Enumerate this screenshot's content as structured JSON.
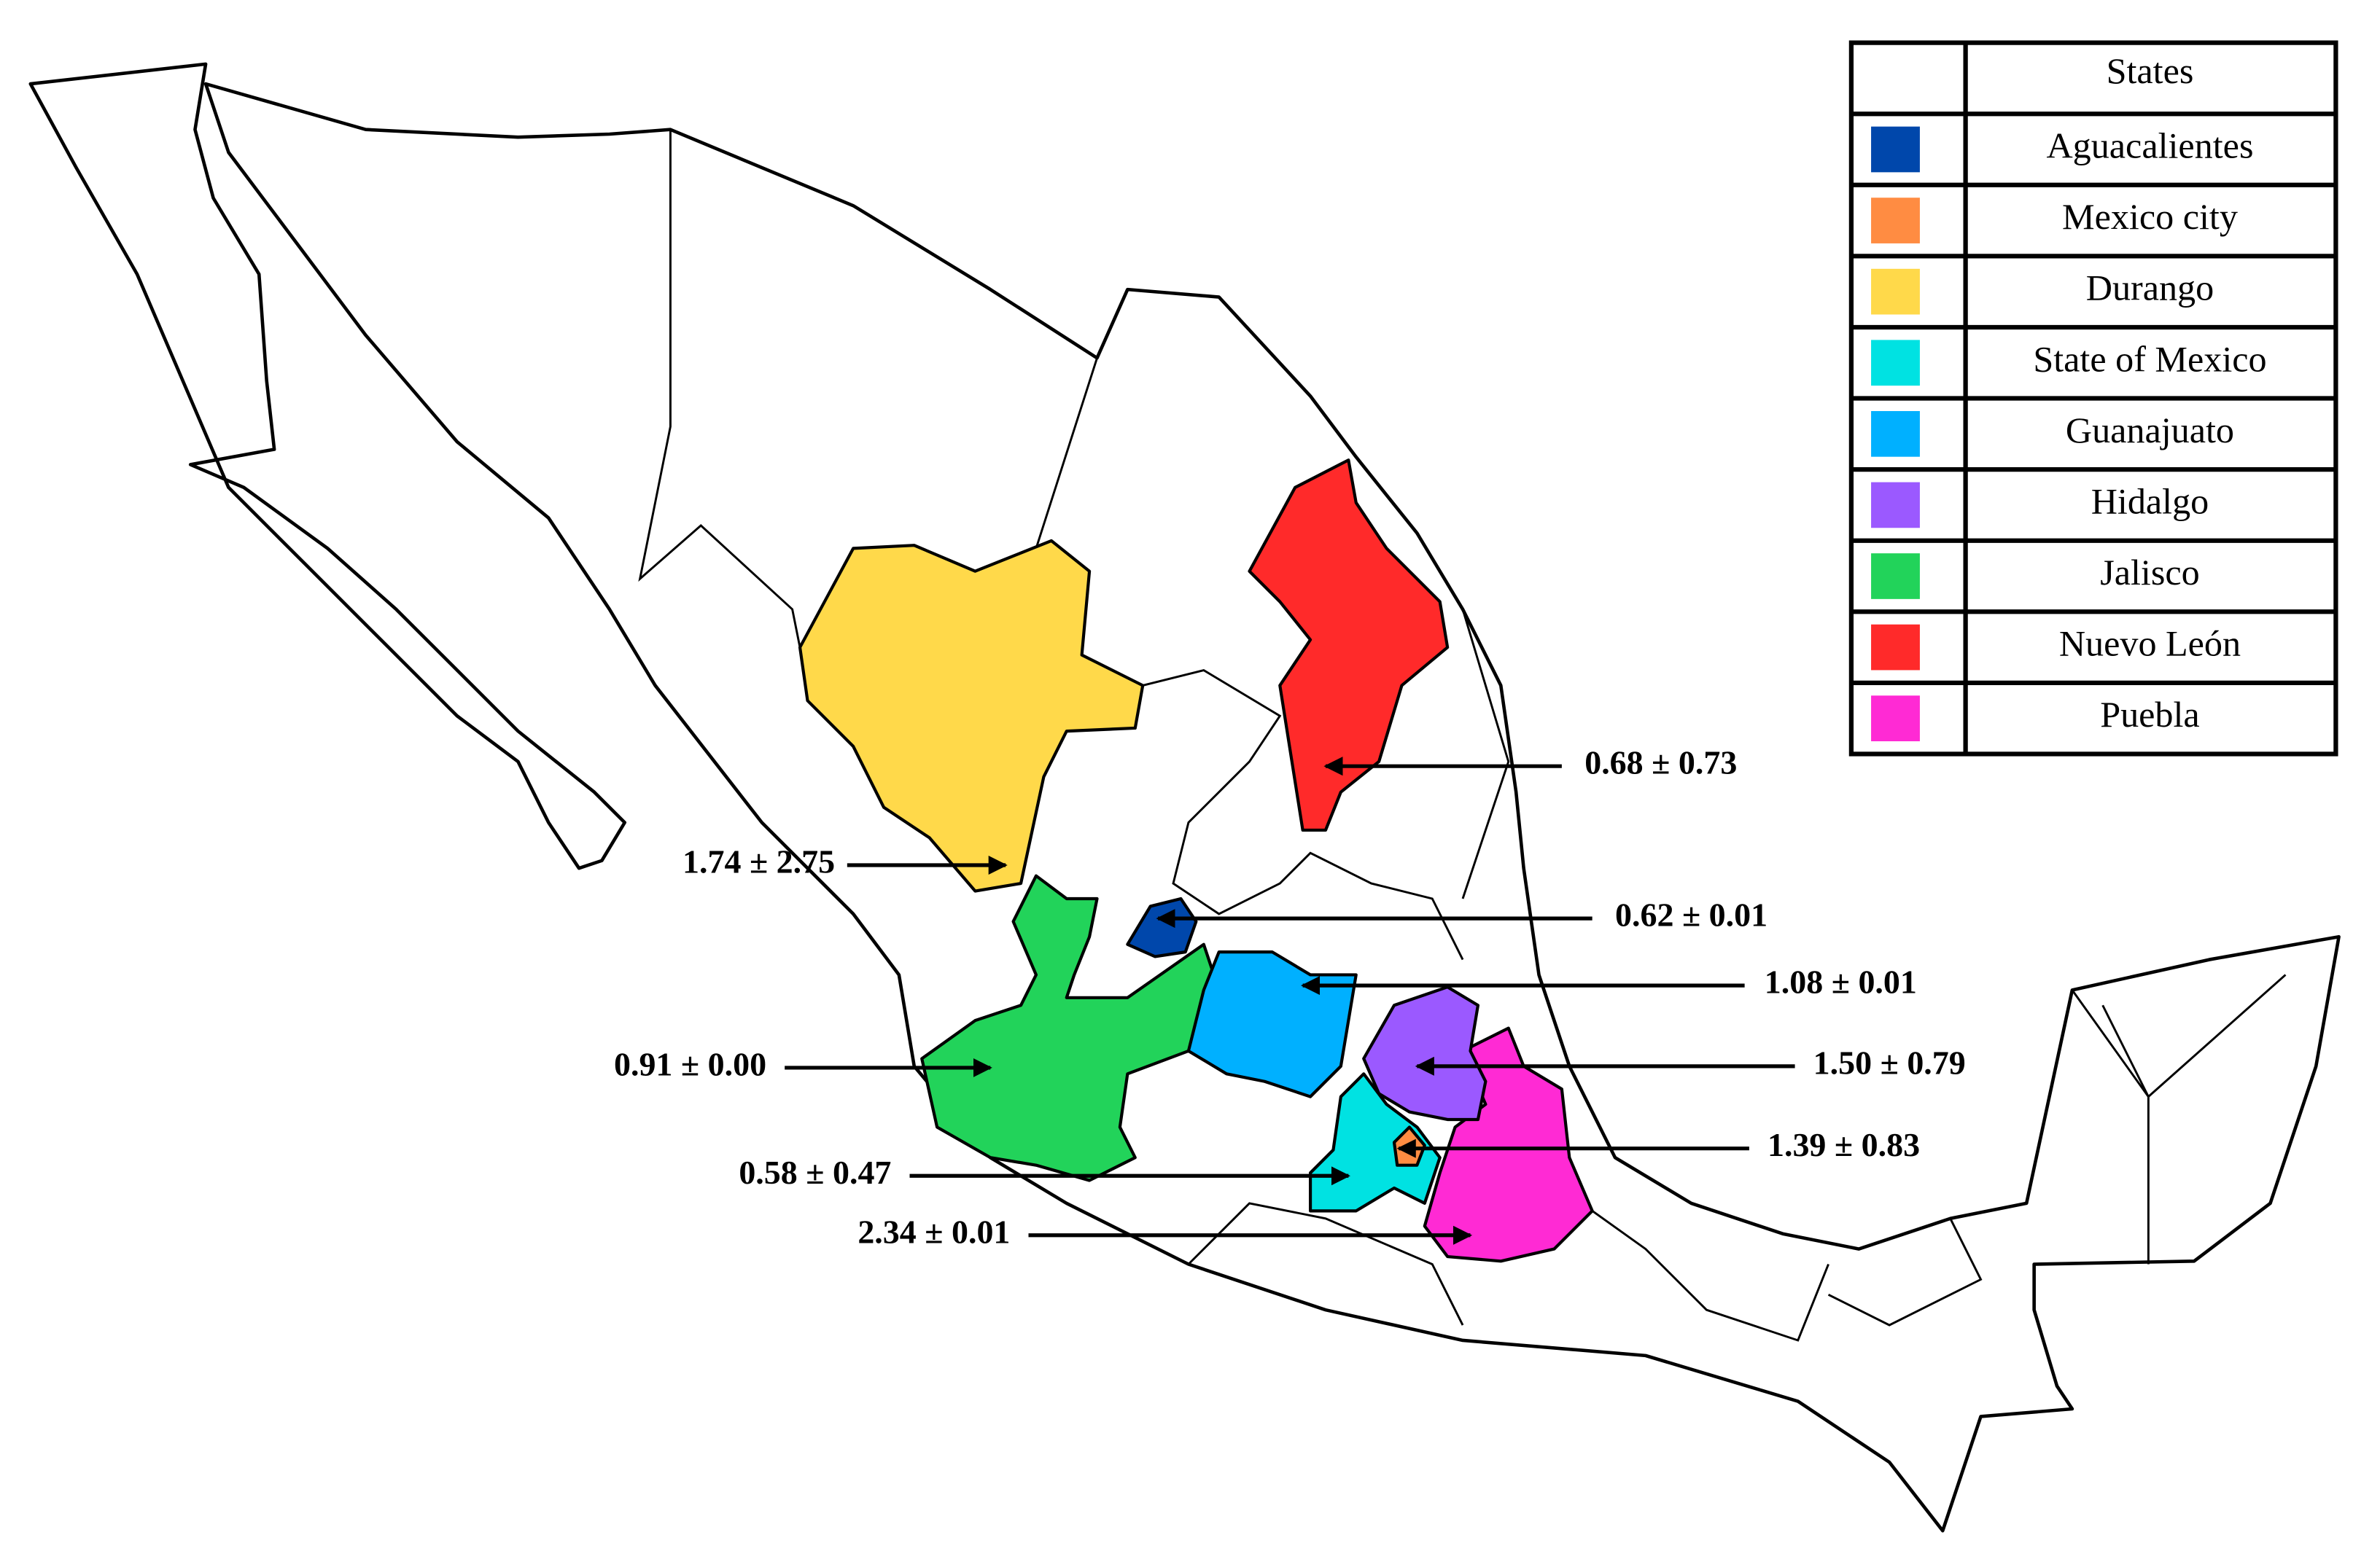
{
  "legend": {
    "header": "States",
    "items": [
      {
        "name": "Aguacalientes",
        "color": "#0047ab"
      },
      {
        "name": "Mexico city",
        "color": "#ff8c42"
      },
      {
        "name": "Durango",
        "color": "#ffd94a"
      },
      {
        "name": "State of Mexico",
        "color": "#00e2e2"
      },
      {
        "name": "Guanajuato",
        "color": "#00b0ff"
      },
      {
        "name": "Hidalgo",
        "color": "#9b59ff"
      },
      {
        "name": "Jalisco",
        "color": "#22d35a"
      },
      {
        "name": "Nuevo León",
        "color": "#ff2a2a"
      },
      {
        "name": "Puebla",
        "color": "#ff2ad4"
      }
    ]
  },
  "annotations": [
    {
      "text": "0.68 ± 0.73"
    },
    {
      "text": "1.74 ± 2.75"
    },
    {
      "text": "0.62 ± 0.01"
    },
    {
      "text": "1.08 ± 0.01"
    },
    {
      "text": "1.50 ± 0.79"
    },
    {
      "text": "0.91 ± 0.00"
    },
    {
      "text": "1.39 ± 0.83"
    },
    {
      "text": "0.58 ± 0.47"
    },
    {
      "text": "2.34 ± 0.01"
    }
  ]
}
